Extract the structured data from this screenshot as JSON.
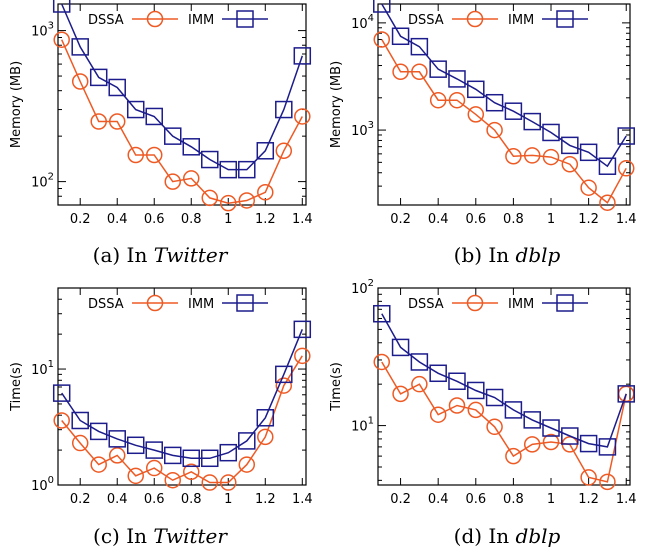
{
  "legend_labels": [
    "DSSA",
    "IMM"
  ],
  "colors": {
    "DSSA": "#ee5a24",
    "IMM": "#1c1c8c"
  },
  "chart_data": [
    {
      "type": "line",
      "caption_prefix": "(a) In ",
      "caption_dataset": "Twitter",
      "ylabel": "Memory (MB)",
      "yscale": "log",
      "ylim": [
        70,
        1500
      ],
      "yticks": [
        {
          "value": 100,
          "base": "10",
          "exp": "2"
        },
        {
          "value": 1000,
          "base": "10",
          "exp": "3"
        }
      ],
      "xlim": [
        0.08,
        1.42
      ],
      "xticks": [
        "0.2",
        "0.4",
        "0.6",
        "0.8",
        "1",
        "1.2",
        "1.4"
      ],
      "x": [
        0.1,
        0.2,
        0.3,
        0.4,
        0.5,
        0.6,
        0.7,
        0.8,
        0.9,
        1.0,
        1.1,
        1.2,
        1.3,
        1.4
      ],
      "series": [
        {
          "name": "DSSA",
          "values": [
            870,
            460,
            250,
            250,
            150,
            150,
            100,
            105,
            78,
            72,
            75,
            85,
            160,
            270
          ]
        },
        {
          "name": "IMM",
          "values": [
            1500,
            780,
            490,
            420,
            300,
            270,
            200,
            170,
            140,
            120,
            120,
            160,
            300,
            680
          ]
        }
      ]
    },
    {
      "type": "line",
      "caption_prefix": "(b) In ",
      "caption_dataset": "dblp",
      "ylabel": "Memory (MB)",
      "yscale": "log",
      "ylim": [
        200,
        15000
      ],
      "yticks": [
        {
          "value": 1000,
          "base": "10",
          "exp": "3"
        },
        {
          "value": 10000,
          "base": "10",
          "exp": "4"
        }
      ],
      "xlim": [
        0.08,
        1.42
      ],
      "xticks": [
        "0.2",
        "0.4",
        "0.6",
        "0.8",
        "1",
        "1.2",
        "1.4"
      ],
      "x": [
        0.1,
        0.2,
        0.3,
        0.4,
        0.5,
        0.6,
        0.7,
        0.8,
        0.9,
        1.0,
        1.1,
        1.2,
        1.3,
        1.4
      ],
      "series": [
        {
          "name": "DSSA",
          "values": [
            7000,
            3500,
            3500,
            1900,
            1900,
            1400,
            1000,
            570,
            580,
            560,
            480,
            290,
            210,
            440
          ]
        },
        {
          "name": "IMM",
          "values": [
            15000,
            7500,
            6000,
            3700,
            3000,
            2400,
            1800,
            1500,
            1200,
            950,
            720,
            620,
            460,
            880
          ]
        }
      ]
    },
    {
      "type": "line",
      "caption_prefix": "(c) In ",
      "caption_dataset": "Twitter",
      "ylabel": "Time(s)",
      "yscale": "log",
      "ylim": [
        1,
        50
      ],
      "yticks": [
        {
          "value": 1,
          "base": "10",
          "exp": "0"
        },
        {
          "value": 10,
          "base": "10",
          "exp": "1"
        }
      ],
      "xlim": [
        0.08,
        1.42
      ],
      "xticks": [
        "0.2",
        "0.4",
        "0.6",
        "0.8",
        "1",
        "1.2",
        "1.4"
      ],
      "x": [
        0.1,
        0.2,
        0.3,
        0.4,
        0.5,
        0.6,
        0.7,
        0.8,
        0.9,
        1.0,
        1.1,
        1.2,
        1.3,
        1.4
      ],
      "series": [
        {
          "name": "DSSA",
          "values": [
            3.6,
            2.3,
            1.5,
            1.8,
            1.2,
            1.4,
            1.1,
            1.3,
            1.05,
            1.05,
            1.5,
            2.6,
            7.2,
            13
          ]
        },
        {
          "name": "IMM",
          "values": [
            6.2,
            3.6,
            2.9,
            2.5,
            2.2,
            2.0,
            1.8,
            1.7,
            1.7,
            1.9,
            2.4,
            3.8,
            9,
            22
          ]
        }
      ]
    },
    {
      "type": "line",
      "caption_prefix": "(d) In ",
      "caption_dataset": "dblp",
      "ylabel": "Time(s)",
      "yscale": "log",
      "ylim": [
        3.7,
        100
      ],
      "yticks": [
        {
          "value": 10,
          "base": "10",
          "exp": "1"
        },
        {
          "value": 100,
          "base": "10",
          "exp": "2"
        }
      ],
      "xlim": [
        0.08,
        1.42
      ],
      "xticks": [
        "0.2",
        "0.4",
        "0.6",
        "0.8",
        "1",
        "1.2",
        "1.4"
      ],
      "x": [
        0.1,
        0.2,
        0.3,
        0.4,
        0.5,
        0.6,
        0.7,
        0.8,
        0.9,
        1.0,
        1.1,
        1.2,
        1.3,
        1.4
      ],
      "series": [
        {
          "name": "DSSA",
          "values": [
            29,
            17,
            20,
            12,
            14,
            13,
            9.8,
            6,
            7.3,
            7.6,
            7.3,
            4.2,
            3.9,
            17
          ]
        },
        {
          "name": "IMM",
          "values": [
            65,
            37,
            29,
            24,
            21,
            18,
            16,
            13,
            11,
            9.6,
            8.4,
            7.4,
            7,
            17
          ]
        }
      ]
    }
  ]
}
